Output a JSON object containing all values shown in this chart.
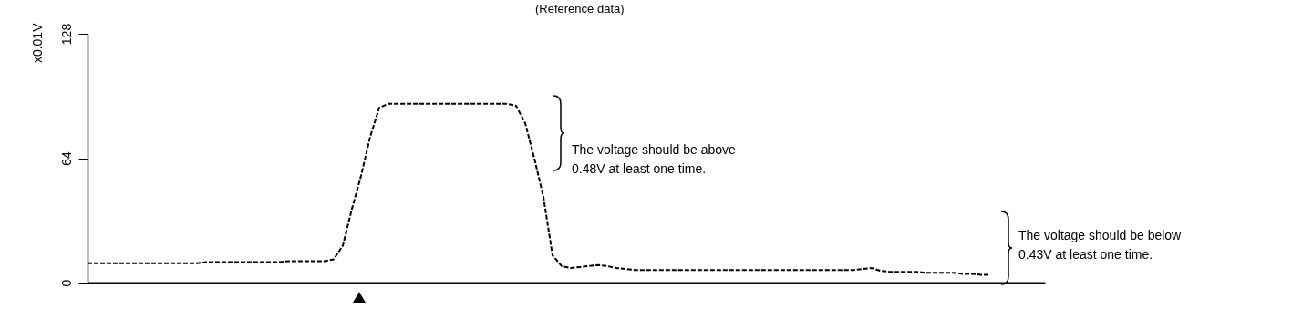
{
  "chart_data": {
    "type": "line",
    "title": "(Reference data)",
    "ylabel": "x0.01V",
    "categories": [
      null,
      null,
      null,
      null,
      null,
      null,
      null,
      null,
      null,
      null,
      null,
      null,
      null,
      null,
      null,
      null,
      null,
      null,
      null,
      null,
      null,
      null,
      null,
      null,
      null,
      null,
      null,
      null,
      null,
      null,
      null,
      null,
      null,
      null,
      null,
      null,
      null,
      null,
      null,
      null,
      null,
      null,
      null,
      null,
      null,
      null,
      null,
      null,
      null,
      null,
      null,
      null,
      null,
      null,
      null,
      null,
      null,
      null,
      null,
      null,
      null,
      null,
      null,
      null,
      null,
      null,
      null,
      null,
      null,
      null,
      null,
      null,
      null,
      null,
      null,
      null,
      null,
      null,
      null,
      null,
      null,
      null,
      null,
      null,
      null,
      null,
      null,
      null,
      null,
      null,
      null,
      null,
      null,
      null,
      null,
      null,
      null,
      null,
      null,
      null,
      null,
      null,
      null,
      null,
      null,
      null
    ],
    "series": [
      {
        "color": "#000000",
        "values": [
          10,
          10,
          10,
          10,
          10,
          10,
          10,
          10,
          10,
          10,
          10,
          10,
          10,
          10.5,
          10.5,
          10.5,
          10.5,
          10.5,
          10.5,
          10.5,
          10.5,
          10.5,
          11,
          11,
          11,
          11,
          11,
          12,
          19,
          38,
          55,
          75,
          90,
          92,
          92,
          92,
          92,
          92,
          92,
          92,
          92,
          92,
          92,
          92,
          92,
          92,
          92,
          91,
          82,
          64,
          44,
          14,
          8.5,
          7.5,
          8,
          8.5,
          9,
          8.5,
          7.5,
          7,
          6.5,
          6.5,
          6.5,
          6.5,
          6.5,
          6.5,
          6.5,
          6.5,
          6.5,
          6.5,
          6.5,
          6.5,
          6.5,
          6.5,
          6.5,
          6.5,
          6.5,
          6.5,
          6.5,
          6.5,
          6.5,
          6.5,
          6.5,
          6.5,
          6.5,
          7,
          7.5,
          6,
          5.5,
          5.5,
          5.5,
          5.5,
          5,
          5,
          5,
          5,
          4.5,
          4.5,
          4,
          4,
          null,
          null,
          null,
          null,
          null,
          null
        ]
      }
    ],
    "ylim": [
      0,
      128
    ],
    "yticks": [
      0,
      64,
      128
    ],
    "grid": false,
    "tick_labels": "y",
    "line_style": "dashed",
    "annotations": [
      "The voltage should be above\n0.48V at least one time.",
      "The voltage should be below\n0.43V at least one time."
    ]
  }
}
